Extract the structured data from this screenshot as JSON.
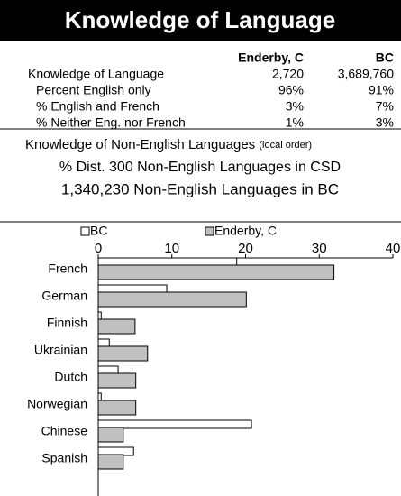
{
  "header": {
    "title": "Knowledge of Language"
  },
  "table": {
    "columns": [
      "Enderby, C",
      "BC"
    ],
    "rows": [
      [
        "Knowledge of Language",
        "2,720",
        "3,689,760"
      ],
      [
        "Percent English only",
        "96%",
        "91%"
      ],
      [
        "% English and French",
        "3%",
        "7%"
      ],
      [
        "% Neither Eng. nor French",
        "1%",
        "3%"
      ]
    ]
  },
  "lines": {
    "heading": "Knowledge of Non-English Languages",
    "note": "(local order)",
    "dist": "% Dist. 300 Non-English Languages in CSD",
    "total": "1,340,230 Non-English Languages in BC"
  },
  "chart_data": {
    "type": "hbar",
    "categories": [
      "French",
      "German",
      "Finnish",
      "Ukrainian",
      "Dutch",
      "Norwegian",
      "Chinese",
      "Spanish"
    ],
    "series": [
      {
        "name": "BC",
        "color": "#ffffff",
        "values": [
          18.8,
          9.3,
          0.4,
          1.5,
          2.7,
          0.4,
          20.8,
          4.8
        ]
      },
      {
        "name": "Enderby, C",
        "color": "#c0c0c0",
        "values": [
          32.0,
          20.1,
          5.0,
          6.7,
          5.1,
          5.1,
          3.4,
          3.4
        ]
      }
    ],
    "xlim": [
      0,
      40
    ],
    "xticks": [
      0,
      10,
      20,
      30,
      40
    ]
  }
}
